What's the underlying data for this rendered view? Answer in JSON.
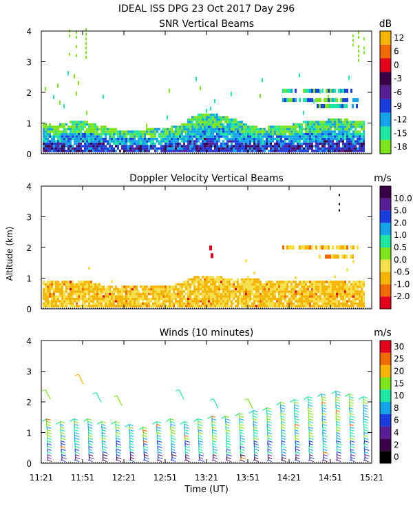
{
  "header": {
    "title": "IDEAL ISS DPG  23 Oct 2017 Day 296"
  },
  "ylabel": "Altitude (km)",
  "xlabel": "Time (UT)",
  "chart_data": [
    {
      "type": "heatmap",
      "title": "SNR Vertical Beams",
      "ylim": [
        0,
        4
      ],
      "yticks": [
        "0",
        "1",
        "2",
        "3",
        "4"
      ],
      "colorbar": {
        "unit": "dB",
        "labels": [
          "12",
          "6",
          "0",
          "-3",
          "-6",
          "-9",
          "-12",
          "-15",
          "-18"
        ],
        "colors": [
          "#f5b400",
          "#f06a00",
          "#e2001a",
          "#3a0047",
          "#5a1f96",
          "#1c3fe0",
          "#13a4ec",
          "#1ce6a0",
          "#7de41c"
        ]
      },
      "profiles": [
        {
          "t": 0,
          "top": 0.95
        },
        {
          "t": 10,
          "top": 0.9
        },
        {
          "t": 20,
          "top": 1.0
        },
        {
          "t": 30,
          "top": 1.05
        },
        {
          "t": 40,
          "top": 0.9
        },
        {
          "t": 50,
          "top": 0.8
        },
        {
          "t": 60,
          "top": 0.7
        },
        {
          "t": 70,
          "top": 0.7
        },
        {
          "t": 80,
          "top": 0.8
        },
        {
          "t": 90,
          "top": 0.8
        },
        {
          "t": 100,
          "top": 0.9
        },
        {
          "t": 110,
          "top": 1.2
        },
        {
          "t": 120,
          "top": 1.3
        },
        {
          "t": 130,
          "top": 1.2
        },
        {
          "t": 140,
          "top": 1.1
        },
        {
          "t": 150,
          "top": 0.9
        },
        {
          "t": 160,
          "top": 0.8
        },
        {
          "t": 170,
          "top": 0.9
        },
        {
          "t": 180,
          "top": 0.9
        },
        {
          "t": 190,
          "top": 1.0
        },
        {
          "t": 200,
          "top": 1.0
        },
        {
          "t": 210,
          "top": 1.1
        },
        {
          "t": 220,
          "top": 1.1
        },
        {
          "t": 230,
          "top": 1.0
        },
        {
          "t": 240,
          "top": 1.0
        }
      ],
      "upper_layers": [
        {
          "t0": 175,
          "t1": 230,
          "alt": 2.05
        },
        {
          "t0": 175,
          "t1": 230,
          "alt": 1.75
        },
        {
          "t0": 200,
          "t1": 230,
          "alt": 1.55
        }
      ]
    },
    {
      "type": "heatmap",
      "title": "Doppler Velocity Vertical Beams",
      "ylim": [
        0,
        4
      ],
      "yticks": [
        "0",
        "1",
        "2",
        "3",
        "4"
      ],
      "colorbar": {
        "unit": "m/s",
        "labels": [
          "10.0",
          "5.0",
          "2.0",
          "1.0",
          "0.5",
          "0.0",
          "-0.5",
          "-1.0",
          "-2.0"
        ],
        "colors": [
          "#3a0047",
          "#5a1f96",
          "#1c3fe0",
          "#13a4ec",
          "#1ce6a0",
          "#7de41c",
          "#f5e04a",
          "#f5b400",
          "#f06a00",
          "#e2001a"
        ]
      },
      "profiles": [
        {
          "t": 0,
          "top": 0.9
        },
        {
          "t": 10,
          "top": 0.9
        },
        {
          "t": 20,
          "top": 0.9
        },
        {
          "t": 30,
          "top": 0.9
        },
        {
          "t": 40,
          "top": 0.8
        },
        {
          "t": 50,
          "top": 0.7
        },
        {
          "t": 60,
          "top": 0.7
        },
        {
          "t": 70,
          "top": 0.7
        },
        {
          "t": 80,
          "top": 0.7
        },
        {
          "t": 90,
          "top": 0.7
        },
        {
          "t": 100,
          "top": 0.8
        },
        {
          "t": 110,
          "top": 1.0
        },
        {
          "t": 120,
          "top": 1.05
        },
        {
          "t": 130,
          "top": 1.0
        },
        {
          "t": 140,
          "top": 0.9
        },
        {
          "t": 150,
          "top": 1.0
        },
        {
          "t": 160,
          "top": 0.9
        },
        {
          "t": 170,
          "top": 0.9
        },
        {
          "t": 180,
          "top": 0.9
        },
        {
          "t": 190,
          "top": 0.9
        },
        {
          "t": 200,
          "top": 0.9
        },
        {
          "t": 210,
          "top": 0.9
        },
        {
          "t": 220,
          "top": 0.9
        },
        {
          "t": 230,
          "top": 0.9
        },
        {
          "t": 240,
          "top": 0.9
        }
      ],
      "upper_layers": [
        {
          "t0": 175,
          "t1": 230,
          "alt": 2.0
        },
        {
          "t0": 200,
          "t1": 230,
          "alt": 1.7
        }
      ]
    },
    {
      "type": "scatter",
      "title": "Winds (10 minutes)",
      "ylim": [
        0,
        4
      ],
      "yticks": [
        "0",
        "1",
        "2",
        "3",
        "4"
      ],
      "colorbar": {
        "unit": "m/s",
        "labels": [
          "30",
          "25",
          "20",
          "15",
          "10",
          "8",
          "6",
          "4",
          "2",
          "0"
        ],
        "colors": [
          "#e2001a",
          "#f06a00",
          "#f5b400",
          "#7de41c",
          "#1ce6a0",
          "#13a4ec",
          "#1c3fe0",
          "#5a1f96",
          "#3a0047",
          "#000000"
        ]
      },
      "barb_times": [
        5,
        15,
        25,
        35,
        45,
        55,
        65,
        75,
        85,
        95,
        105,
        115,
        125,
        135,
        145,
        155,
        165,
        175,
        185,
        195,
        205,
        215,
        225,
        235
      ],
      "barb_tops": [
        1.5,
        1.4,
        1.5,
        1.5,
        1.4,
        1.4,
        1.3,
        1.2,
        1.4,
        1.5,
        1.4,
        1.5,
        1.6,
        1.6,
        1.7,
        1.8,
        1.9,
        2.0,
        2.1,
        2.2,
        2.3,
        2.4,
        2.3,
        2.2
      ],
      "upper_marks": [
        {
          "t": 3,
          "alt": 2.4
        },
        {
          "t": 27,
          "alt": 2.9
        },
        {
          "t": 40,
          "alt": 2.3
        },
        {
          "t": 55,
          "alt": 2.2
        },
        {
          "t": 100,
          "alt": 2.4
        },
        {
          "t": 125,
          "alt": 2.1
        },
        {
          "t": 150,
          "alt": 2.1
        }
      ]
    }
  ],
  "time_axis": {
    "range_minutes": [
      0,
      240
    ],
    "tick_labels": [
      "11:21",
      "11:51",
      "12:21",
      "12:51",
      "13:21",
      "13:51",
      "14:21",
      "14:51",
      "15:21"
    ]
  }
}
